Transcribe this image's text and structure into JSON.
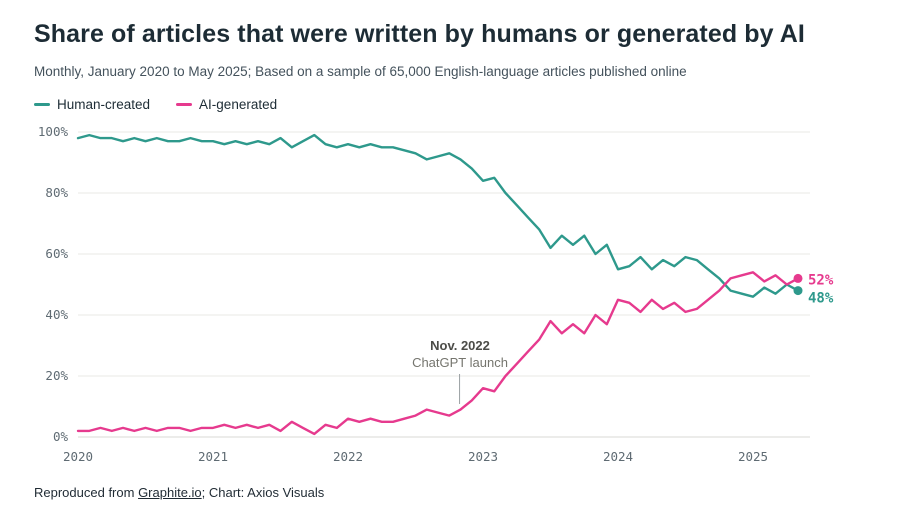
{
  "chart_data": {
    "type": "line",
    "title": "Share of articles that were written by humans or generated by AI",
    "subtitle": "Monthly, January 2020 to May 2025; Based on a sample of 65,000 English-language articles published online",
    "x_interval": "monthly",
    "x_start": "2020-01",
    "x_end": "2025-05",
    "x_tick_indices": [
      0,
      12,
      24,
      36,
      48,
      60
    ],
    "x_tick_labels": [
      "2020",
      "2021",
      "2022",
      "2023",
      "2024",
      "2025"
    ],
    "y_ticks": [
      0,
      20,
      40,
      60,
      80,
      100
    ],
    "y_tick_labels": [
      "0%",
      "20%",
      "40%",
      "60%",
      "80%",
      "100%"
    ],
    "ylim": [
      0,
      100
    ],
    "grid": true,
    "legend_position": "top-left",
    "series": [
      {
        "name": "Human-created",
        "color": "#2e998c",
        "end_label": "48%",
        "end_label_dy": 7,
        "values": [
          98,
          99,
          98,
          98,
          97,
          98,
          97,
          98,
          97,
          97,
          98,
          97,
          97,
          96,
          97,
          96,
          97,
          96,
          98,
          95,
          97,
          99,
          96,
          95,
          96,
          95,
          96,
          95,
          95,
          94,
          93,
          91,
          92,
          93,
          91,
          88,
          84,
          85,
          80,
          76,
          72,
          68,
          62,
          66,
          63,
          66,
          60,
          63,
          55,
          56,
          59,
          55,
          58,
          56,
          59,
          58,
          55,
          52,
          48,
          47,
          46,
          49,
          47,
          50,
          48
        ]
      },
      {
        "name": "AI-generated",
        "color": "#e63a8e",
        "end_label": "52%",
        "end_label_dy": 1,
        "values": [
          2,
          2,
          3,
          2,
          3,
          2,
          3,
          2,
          3,
          3,
          2,
          3,
          3,
          4,
          3,
          4,
          3,
          4,
          2,
          5,
          3,
          1,
          4,
          3,
          6,
          5,
          6,
          5,
          5,
          6,
          7,
          9,
          8,
          7,
          9,
          12,
          16,
          15,
          20,
          24,
          28,
          32,
          38,
          34,
          37,
          34,
          40,
          37,
          45,
          44,
          41,
          45,
          42,
          44,
          41,
          42,
          45,
          48,
          52,
          53,
          54,
          51,
          53,
          50,
          52
        ]
      }
    ],
    "annotation": {
      "line1": "Nov. 2022",
      "line2": "ChatGPT launch",
      "x_month": "2022-11",
      "x_index": 34
    }
  },
  "footer": {
    "prefix": "Reproduced from ",
    "link": "Graphite.io",
    "suffix": "; Chart: Axios Visuals"
  }
}
